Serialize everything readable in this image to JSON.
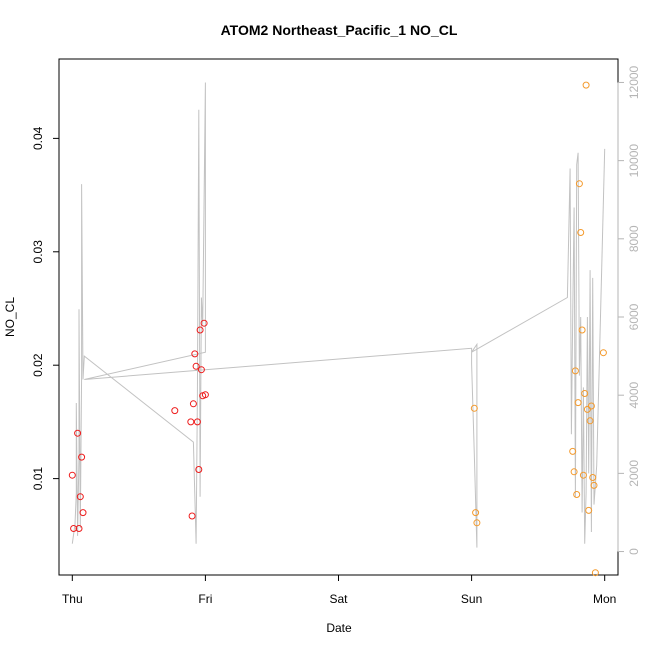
{
  "chart_data": {
    "type": "scatter",
    "title": "ATOM2 Northeast_Pacific_1 NO_CL",
    "xlabel": "Date",
    "ylabel": "NO_CL",
    "x_ticks": [
      "Thu",
      "Fri",
      "Sat",
      "Sun",
      "Mon"
    ],
    "x_unit": "days from Thu",
    "xlim": [
      -0.1,
      4.1
    ],
    "ylim": [
      0.0015,
      0.047
    ],
    "y_ticks": [
      0.01,
      0.02,
      0.03,
      0.04
    ],
    "y_tick_labels": [
      "0.01",
      "0.02",
      "0.03",
      "0.04"
    ],
    "y2lim": [
      -600,
      12600
    ],
    "y2_ticks": [
      0,
      2000,
      4000,
      6000,
      8000,
      10000,
      12000
    ],
    "y2_tick_labels": [
      "0",
      "2000",
      "4000",
      "6000",
      "8000",
      "10000",
      "12000"
    ],
    "colors": {
      "series_red": "#ee1c1c",
      "series_orange": "#f49a2c",
      "line_gray": "#c2c2c2",
      "right_axis": "#b5b5b5"
    },
    "series": [
      {
        "color": "red",
        "points": [
          [
            0.0,
            0.0103
          ],
          [
            0.01,
            0.0056
          ],
          [
            0.04,
            0.014
          ],
          [
            0.05,
            0.0056
          ],
          [
            0.06,
            0.0084
          ],
          [
            0.07,
            0.0119
          ],
          [
            0.08,
            0.007
          ],
          [
            0.77,
            0.016
          ],
          [
            0.89,
            0.015
          ],
          [
            0.9,
            0.0067
          ],
          [
            0.91,
            0.0166
          ],
          [
            0.92,
            0.021
          ],
          [
            0.93,
            0.0199
          ],
          [
            0.94,
            0.015
          ],
          [
            0.95,
            0.0108
          ],
          [
            0.96,
            0.0231
          ],
          [
            0.97,
            0.0196
          ],
          [
            0.98,
            0.0173
          ],
          [
            0.99,
            0.0237
          ],
          [
            1.0,
            0.0174
          ]
        ]
      },
      {
        "color": "orange",
        "points": [
          [
            3.02,
            0.0162
          ],
          [
            3.03,
            0.007
          ],
          [
            3.04,
            0.0061
          ],
          [
            3.76,
            0.0124
          ],
          [
            3.77,
            0.0106
          ],
          [
            3.78,
            0.0195
          ],
          [
            3.79,
            0.0086
          ],
          [
            3.8,
            0.0167
          ],
          [
            3.81,
            0.036
          ],
          [
            3.82,
            0.0317
          ],
          [
            3.83,
            0.0231
          ],
          [
            3.84,
            0.0103
          ],
          [
            3.85,
            0.0175
          ],
          [
            3.86,
            0.0447
          ],
          [
            3.87,
            0.0161
          ],
          [
            3.88,
            0.0072
          ],
          [
            3.89,
            0.0151
          ],
          [
            3.9,
            0.0164
          ],
          [
            3.91,
            0.0101
          ],
          [
            3.92,
            0.0094
          ],
          [
            3.93,
            0.0017
          ],
          [
            3.99,
            0.0211
          ]
        ]
      }
    ],
    "secondary_line": {
      "axis": "right",
      "points": [
        [
          0.0,
          200
        ],
        [
          0.02,
          700
        ],
        [
          0.03,
          1500
        ],
        [
          0.03,
          3800
        ],
        [
          0.04,
          400
        ],
        [
          0.05,
          2500
        ],
        [
          0.05,
          6200
        ],
        [
          0.06,
          600
        ],
        [
          0.07,
          4500
        ],
        [
          0.07,
          9400
        ],
        [
          0.08,
          4400
        ],
        [
          0.09,
          5000
        ],
        [
          0.91,
          2800
        ],
        [
          0.93,
          200
        ],
        [
          0.94,
          4000
        ],
        [
          0.95,
          11300
        ],
        [
          0.96,
          1400
        ],
        [
          0.97,
          6500
        ],
        [
          0.98,
          5800
        ],
        [
          1.0,
          12000
        ],
        [
          1.0,
          5100
        ],
        [
          0.09,
          4400
        ],
        [
          3.0,
          5200
        ],
        [
          3.0,
          4800
        ],
        [
          3.02,
          2500
        ],
        [
          3.04,
          100
        ],
        [
          3.04,
          5300
        ],
        [
          3.0,
          5100
        ],
        [
          3.72,
          6500
        ],
        [
          3.74,
          9800
        ],
        [
          3.75,
          3000
        ],
        [
          3.76,
          6000
        ],
        [
          3.77,
          8800
        ],
        [
          3.78,
          1400
        ],
        [
          3.79,
          9900
        ],
        [
          3.8,
          10200
        ],
        [
          3.81,
          4500
        ],
        [
          3.82,
          6000
        ],
        [
          3.83,
          1000
        ],
        [
          3.84,
          4200
        ],
        [
          3.85,
          200
        ],
        [
          3.86,
          1500
        ],
        [
          3.87,
          6000
        ],
        [
          3.88,
          2000
        ],
        [
          3.89,
          7200
        ],
        [
          3.9,
          500
        ],
        [
          3.91,
          7000
        ],
        [
          3.92,
          1200
        ],
        [
          3.94,
          2200
        ],
        [
          3.96,
          4900
        ],
        [
          4.0,
          10300
        ]
      ]
    }
  }
}
